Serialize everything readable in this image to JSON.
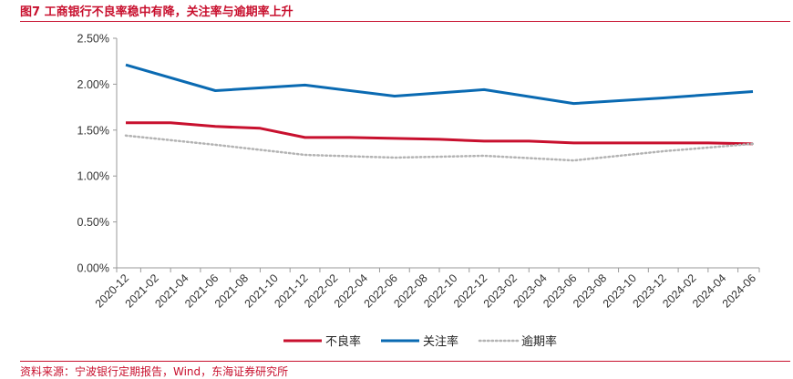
{
  "header": {
    "title": "图7  工商银行不良率稳中有降，关注率与逾期率上升"
  },
  "source": {
    "text": "资料来源：宁波银行定期报告，Wind，东海证券研究所"
  },
  "colors": {
    "accent": "#c8102e",
    "npl": "#c8102e",
    "attention": "#0a6ab2",
    "overdue": "#b3b3b3"
  },
  "chart_data": {
    "type": "line",
    "title": "",
    "xlabel": "",
    "ylabel": "",
    "ylim": [
      0,
      2.5
    ],
    "yticks": [
      "0.00%",
      "0.50%",
      "1.00%",
      "1.50%",
      "2.00%",
      "2.50%"
    ],
    "ytick_values": [
      0,
      0.5,
      1.0,
      1.5,
      2.0,
      2.5
    ],
    "x": [
      "2020-12",
      "2021-02",
      "2021-04",
      "2021-06",
      "2021-08",
      "2021-10",
      "2021-12",
      "2022-02",
      "2022-04",
      "2022-06",
      "2022-08",
      "2022-10",
      "2022-12",
      "2023-02",
      "2023-04",
      "2023-06",
      "2023-08",
      "2023-10",
      "2023-12",
      "2024-02",
      "2024-04",
      "2024-06"
    ],
    "grid": false,
    "legend": "bottom",
    "series": [
      {
        "name": "不良率",
        "style": "solid",
        "points": [
          [
            "2020-12",
            1.58
          ],
          [
            "2021-03",
            1.58
          ],
          [
            "2021-06",
            1.54
          ],
          [
            "2021-09",
            1.52
          ],
          [
            "2021-12",
            1.42
          ],
          [
            "2022-03",
            1.42
          ],
          [
            "2022-06",
            1.41
          ],
          [
            "2022-09",
            1.4
          ],
          [
            "2022-12",
            1.38
          ],
          [
            "2023-03",
            1.38
          ],
          [
            "2023-06",
            1.36
          ],
          [
            "2023-09",
            1.36
          ],
          [
            "2023-12",
            1.36
          ],
          [
            "2024-03",
            1.36
          ],
          [
            "2024-06",
            1.35
          ]
        ]
      },
      {
        "name": "关注率",
        "style": "solid",
        "points": [
          [
            "2020-12",
            2.21
          ],
          [
            "2021-06",
            1.93
          ],
          [
            "2021-12",
            1.99
          ],
          [
            "2022-06",
            1.87
          ],
          [
            "2022-12",
            1.94
          ],
          [
            "2023-06",
            1.79
          ],
          [
            "2023-12",
            1.85
          ],
          [
            "2024-06",
            1.92
          ]
        ]
      },
      {
        "name": "逾期率",
        "style": "dotted",
        "points": [
          [
            "2020-12",
            1.44
          ],
          [
            "2021-06",
            1.34
          ],
          [
            "2021-12",
            1.23
          ],
          [
            "2022-06",
            1.2
          ],
          [
            "2022-12",
            1.22
          ],
          [
            "2023-06",
            1.17
          ],
          [
            "2023-12",
            1.27
          ],
          [
            "2024-06",
            1.35
          ]
        ]
      }
    ]
  }
}
